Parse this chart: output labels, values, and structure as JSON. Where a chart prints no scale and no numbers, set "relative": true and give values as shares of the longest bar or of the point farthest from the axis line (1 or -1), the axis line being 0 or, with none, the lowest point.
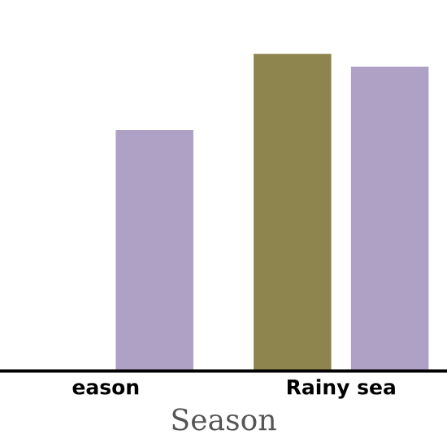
{
  "chart_data": {
    "type": "bar",
    "relative": true,
    "xlabel": "Season",
    "categories": [
      "eason",
      "Rainy sea"
    ],
    "series": [
      {
        "color": "#8e844e",
        "values": [
          null,
          1
        ]
      },
      {
        "color": "#afa0c6",
        "values": [
          0.76,
          0.96
        ]
      }
    ]
  }
}
